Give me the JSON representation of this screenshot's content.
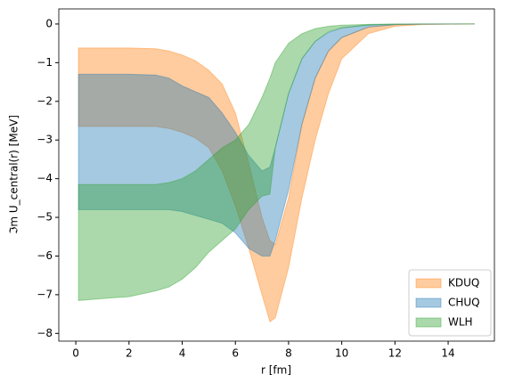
{
  "chart_data": {
    "type": "band",
    "xlabel": "r [fm]",
    "ylabel": "ℑm U_central(r) [MeV]",
    "x": [
      0.1,
      1,
      2,
      3,
      3.5,
      4,
      4.5,
      5,
      5.5,
      6,
      6.5,
      7,
      7.3,
      7.5,
      8,
      8.5,
      9,
      9.5,
      10,
      11,
      12,
      13,
      15
    ],
    "series": [
      {
        "name": "KDUQ",
        "color": "#ff7f0e",
        "upper": [
          -0.62,
          -0.62,
          -0.62,
          -0.64,
          -0.7,
          -0.8,
          -0.95,
          -1.2,
          -1.55,
          -2.3,
          -3.6,
          -5.0,
          -5.6,
          -5.7,
          -4.5,
          -2.6,
          -1.4,
          -0.7,
          -0.35,
          -0.08,
          -0.02,
          -0.005,
          0
        ],
        "lower": [
          -2.65,
          -2.65,
          -2.65,
          -2.65,
          -2.7,
          -2.8,
          -2.95,
          -3.2,
          -3.8,
          -4.7,
          -5.8,
          -7.0,
          -7.7,
          -7.6,
          -6.3,
          -4.5,
          -3.0,
          -1.8,
          -0.9,
          -0.25,
          -0.06,
          -0.015,
          0
        ]
      },
      {
        "name": "CHUQ",
        "color": "#1f77b4",
        "upper": [
          -1.3,
          -1.3,
          -1.3,
          -1.32,
          -1.4,
          -1.6,
          -1.75,
          -1.9,
          -2.3,
          -2.8,
          -3.4,
          -3.8,
          -3.7,
          -3.2,
          -1.8,
          -0.9,
          -0.45,
          -0.22,
          -0.1,
          -0.02,
          -0.005,
          0,
          0
        ],
        "lower": [
          -4.8,
          -4.8,
          -4.8,
          -4.8,
          -4.8,
          -4.85,
          -4.95,
          -5.05,
          -5.15,
          -5.4,
          -5.8,
          -6.0,
          -6.0,
          -5.6,
          -4.3,
          -2.6,
          -1.4,
          -0.7,
          -0.35,
          -0.08,
          -0.02,
          -0.005,
          0
        ]
      },
      {
        "name": "WLH",
        "color": "#2ca02c",
        "upper": [
          -4.15,
          -4.15,
          -4.15,
          -4.15,
          -4.1,
          -4.0,
          -3.8,
          -3.5,
          -3.2,
          -3.0,
          -2.6,
          -1.9,
          -1.4,
          -1.0,
          -0.5,
          -0.25,
          -0.12,
          -0.06,
          -0.03,
          -0.01,
          0,
          0,
          0
        ],
        "lower": [
          -7.15,
          -7.1,
          -7.05,
          -6.9,
          -6.8,
          -6.6,
          -6.3,
          -5.9,
          -5.6,
          -5.3,
          -4.8,
          -4.45,
          -4.4,
          -3.2,
          -1.8,
          -0.9,
          -0.45,
          -0.2,
          -0.1,
          -0.03,
          -0.01,
          0,
          0
        ]
      }
    ],
    "xlim": [
      -0.64,
      15.74
    ],
    "ylim": [
      -8.2,
      0.39
    ],
    "xticks": [
      0,
      2,
      4,
      6,
      8,
      10,
      12,
      14
    ],
    "yticks": [
      {
        "value": -8,
        "label": "−8"
      },
      {
        "value": -7,
        "label": "−7"
      },
      {
        "value": -6,
        "label": "−6"
      },
      {
        "value": -5,
        "label": "−5"
      },
      {
        "value": -4,
        "label": "−4"
      },
      {
        "value": -3,
        "label": "−3"
      },
      {
        "value": -2,
        "label": "−2"
      },
      {
        "value": -1,
        "label": "−1"
      },
      0
    ],
    "legend": "lower right"
  }
}
